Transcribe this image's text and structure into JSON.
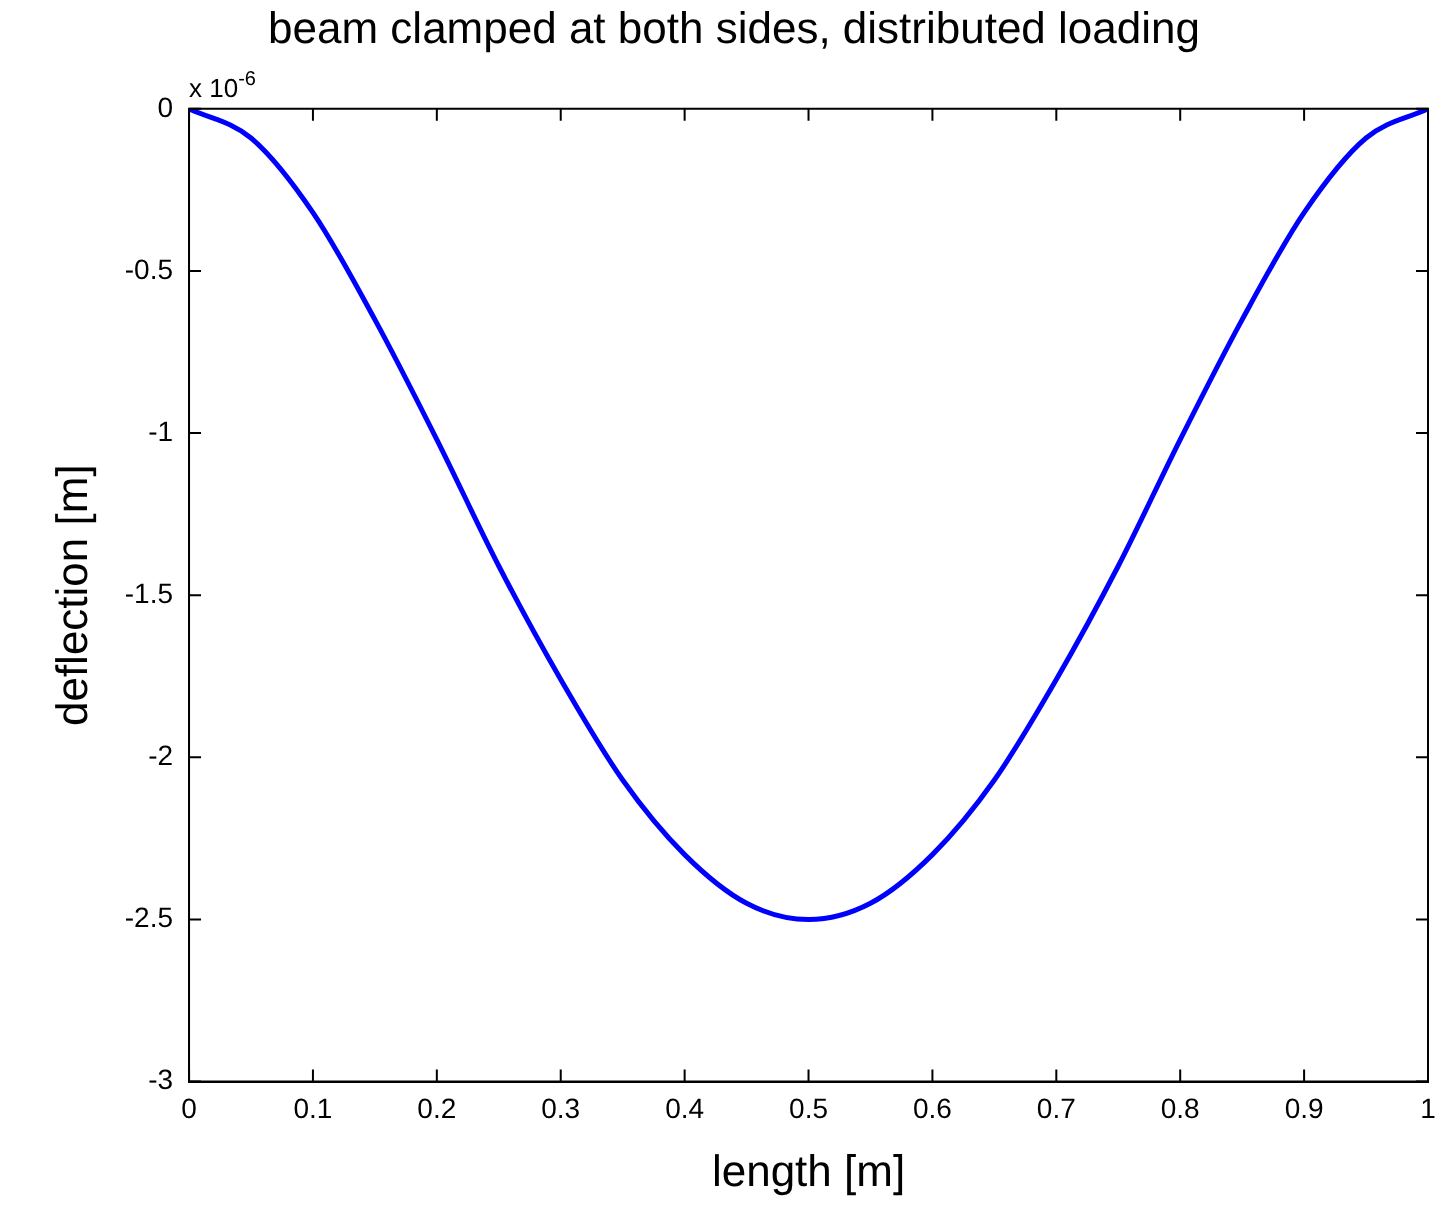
{
  "chart_data": {
    "type": "line",
    "title": "beam clamped at both sides, distributed loading",
    "xlabel": "length [m]",
    "ylabel": "deflection [m]",
    "annotations": [
      "x 10$^{-6}$"
    ],
    "x": [
      0,
      0.05,
      0.1,
      0.15,
      0.2,
      0.25,
      0.3,
      0.35,
      0.4,
      0.45,
      0.5,
      0.55,
      0.6,
      0.65,
      0.7,
      0.75,
      0.8,
      0.85,
      0.9,
      0.95,
      1
    ],
    "series": [
      {
        "color": "#0000ff",
        "values": [
          0,
          -0.09,
          -0.32,
          -0.65,
          -1.02,
          -1.41,
          -1.76,
          -2.07,
          -2.3,
          -2.45,
          -2.5,
          -2.45,
          -2.3,
          -2.07,
          -1.76,
          -1.41,
          -1.02,
          -0.65,
          -0.32,
          -0.09,
          0
        ]
      }
    ],
    "xlim": [
      0,
      1
    ],
    "xticks": [
      0,
      0.1,
      0.2,
      0.3,
      0.4,
      0.5,
      0.6,
      0.7,
      0.8,
      0.9,
      1
    ],
    "ylim": [
      -3,
      0
    ],
    "yticks": [
      -3,
      -2.5,
      -2,
      -1.5,
      -1,
      -0.5,
      0
    ],
    "grid": false,
    "legend": false,
    "marker": "none",
    "line_style": "solid"
  }
}
